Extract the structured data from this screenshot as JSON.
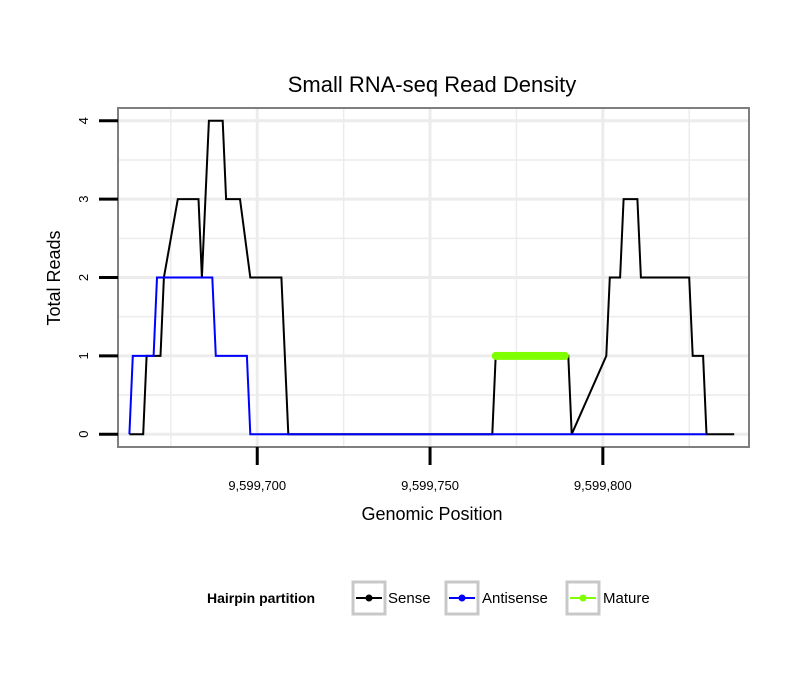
{
  "chart_data": {
    "type": "line",
    "title": "Small RNA-seq Read Density",
    "xlabel": "Genomic Position",
    "ylabel": "Total Reads",
    "xlim": [
      9599660,
      9599842
    ],
    "ylim": [
      -0.15,
      4.15
    ],
    "x_ticks": [
      9599700,
      9599750,
      9599800
    ],
    "x_tick_labels": [
      "9,599,700",
      "9,599,750",
      "9,599,800"
    ],
    "y_ticks": [
      0,
      1,
      2,
      3,
      4
    ],
    "y_tick_labels": [
      "0",
      "1",
      "2",
      "3",
      "4"
    ],
    "grid": true,
    "legend": {
      "position": "bottom",
      "title": "Hairpin partition",
      "entries": [
        "Sense",
        "Antisense",
        "Mature"
      ]
    },
    "series": [
      {
        "name": "Sense",
        "color": "#000000",
        "x": [
          9599663,
          9599667,
          9599668,
          9599672,
          9599673,
          9599677,
          9599683,
          9599684,
          9599685,
          9599686,
          9599690,
          9599691,
          9599695,
          9599698,
          9599707,
          9599709,
          9599768,
          9599769,
          9599790,
          9599791,
          9599801,
          9599802,
          9599805,
          9599806,
          9599810,
          9599811,
          9599814,
          9599815,
          9599825,
          9599826,
          9599829,
          9599830,
          9599838
        ],
        "y": [
          0,
          0,
          1,
          1,
          2,
          3,
          3,
          2,
          3,
          4,
          4,
          3,
          3,
          2,
          2,
          0,
          0,
          1,
          1,
          0,
          1,
          2,
          2,
          3,
          3,
          2,
          2,
          2,
          2,
          1,
          1,
          0,
          0
        ]
      },
      {
        "name": "Antisense",
        "color": "#0000ff",
        "x": [
          9599663,
          9599664,
          9599670,
          9599671,
          9599687,
          9599688,
          9599697,
          9599698,
          9599830
        ],
        "y": [
          0,
          1,
          1,
          2,
          2,
          1,
          1,
          0,
          0
        ]
      },
      {
        "name": "Mature",
        "color": "#7fff00",
        "x": [
          9599769,
          9599789
        ],
        "y": [
          1,
          1
        ]
      }
    ]
  }
}
